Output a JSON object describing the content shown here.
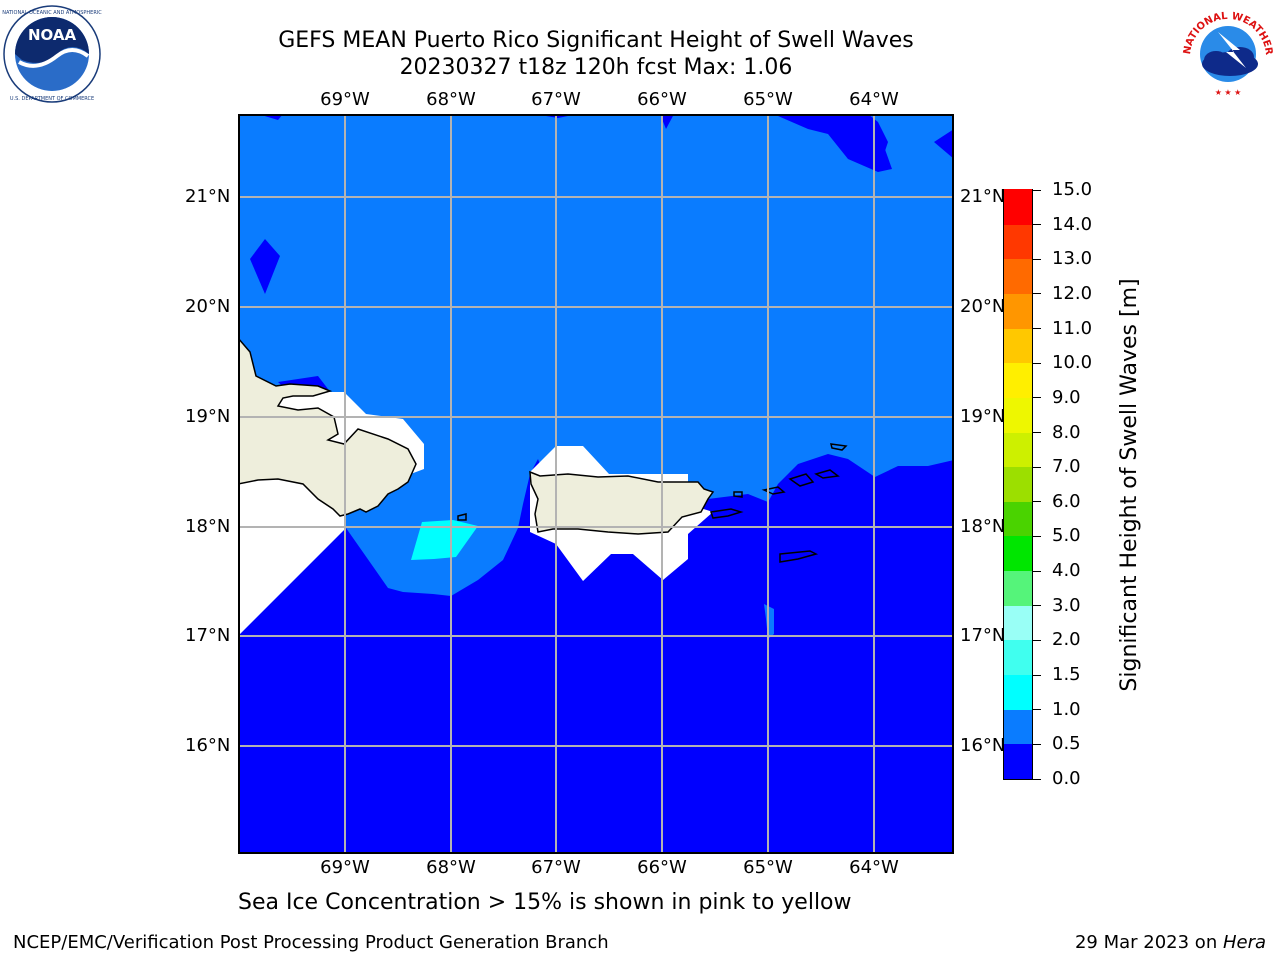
{
  "header": {
    "title_line1": "GEFS MEAN Puerto Rico Significant Height of Swell Waves",
    "title_line2": "20230327 t18z 120h fcst   Max: 1.06"
  },
  "logos": {
    "left": {
      "name": "NOAA",
      "text": "NOAA",
      "ring_text": "NATIONAL OCEANIC AND ATMOSPHERIC ADMINISTRATION · U.S. DEPARTMENT OF COMMERCE"
    },
    "right": {
      "name": "National Weather Service",
      "ring_text": "NATIONAL WEATHER SERVICE"
    }
  },
  "map": {
    "lon_labels": [
      "69°W",
      "68°W",
      "67°W",
      "66°W",
      "65°W",
      "64°W"
    ],
    "lat_labels": [
      "21°N",
      "20°N",
      "19°N",
      "18°N",
      "17°N",
      "16°N"
    ],
    "gridlines": true,
    "colors": {
      "band_0_0_5": "#0000ff",
      "band_0_5_1_0": "#0a7cff",
      "band_1_0_1_5": "#00ffff",
      "land": "#eeeedc",
      "no_data": "#ffffff",
      "grid": "#b3b3b3"
    }
  },
  "colorbar": {
    "label": "Significant Height of Swell Waves [m]",
    "tick_labels": [
      "0.0",
      "0.5",
      "1.0",
      "1.5",
      "2.0",
      "3.0",
      "4.0",
      "5.0",
      "6.0",
      "7.0",
      "8.0",
      "9.0",
      "10.0",
      "11.0",
      "12.0",
      "13.0",
      "14.0",
      "15.0"
    ],
    "colors": [
      "#0000ff",
      "#0a7cff",
      "#00ffff",
      "#40ffef",
      "#99fff6",
      "#55f47a",
      "#00e600",
      "#4ad300",
      "#9cdf00",
      "#cdf000",
      "#eef700",
      "#ffef00",
      "#ffc800",
      "#ff9600",
      "#ff6a00",
      "#ff3800",
      "#ff0000"
    ]
  },
  "bottom_note": "Sea Ice Concentration > 15% is shown in pink to yellow",
  "footer": {
    "left": "NCEP/EMC/Verification Post Processing Product Generation Branch",
    "right_prefix": "29 Mar 2023 on ",
    "right_host": "Hera"
  }
}
